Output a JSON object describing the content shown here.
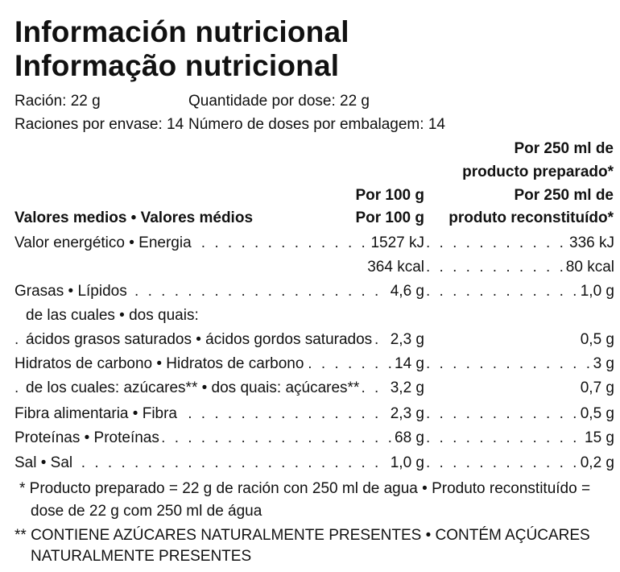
{
  "title": {
    "es": "Información nutricional",
    "pt": "Informação nutricional"
  },
  "serving": {
    "size_es": "Ración: 22 g",
    "size_pt": "Quantidade por dose: 22 g",
    "count_es": "Raciones por envase: 14",
    "count_pt": "Número de doses por embalagem: 14"
  },
  "header": {
    "prep_es_line1": "Por 250 ml de",
    "prep_es_line2": "producto preparado*",
    "per100_es": "Por 100 g",
    "prep_pt_line1": "Por 250 ml de",
    "label": "Valores medios • Valores médios",
    "per100_pt": "Por 100 g",
    "prep_pt_line2": "produto reconstituído*"
  },
  "rows": [
    {
      "label": "Valor energético • Energia",
      "per100": "1527 kJ",
      "per250": "336 kJ"
    },
    {
      "label": "",
      "per100": "364 kcal",
      "per250": "80 kcal"
    },
    {
      "label": "Grasas • Lípidos",
      "per100": "4,6 g",
      "per250": "1,0 g"
    },
    {
      "label": "de las cuales • dos quais:",
      "per100": "",
      "per250": ""
    },
    {
      "label": "ácidos grasos saturados • ácidos gordos saturados",
      "per100": "2,3 g",
      "per250": "0,5 g"
    },
    {
      "label": "Hidratos de carbono • Hidratos de carbono",
      "per100": "14 g",
      "per250": "3 g"
    },
    {
      "label": "de los cuales: azúcares** • dos quais: açúcares**",
      "per100": "3,2 g",
      "per250": "0,7 g"
    },
    {
      "label": "Fibra alimentaria • Fibra",
      "per100": "2,3 g",
      "per250": "0,5 g"
    },
    {
      "label": "Proteínas • Proteínas",
      "per100": "68 g",
      "per250": "15 g"
    },
    {
      "label": "Sal • Sal",
      "per100": "1,0 g",
      "per250": "0,2 g"
    }
  ],
  "footnotes": {
    "note1_line1": "* Producto preparado = 22 g de ración con 250 ml de agua • Produto reconstituído =",
    "note1_line2": "dose de 22 g com 250 ml de água",
    "note2_line1": "** CONTIENE AZÚCARES NATURALMENTE PRESENTES • CONTÉM AÇÚCARES",
    "note2_line2": "NATURALMENTE PRESENTES"
  }
}
